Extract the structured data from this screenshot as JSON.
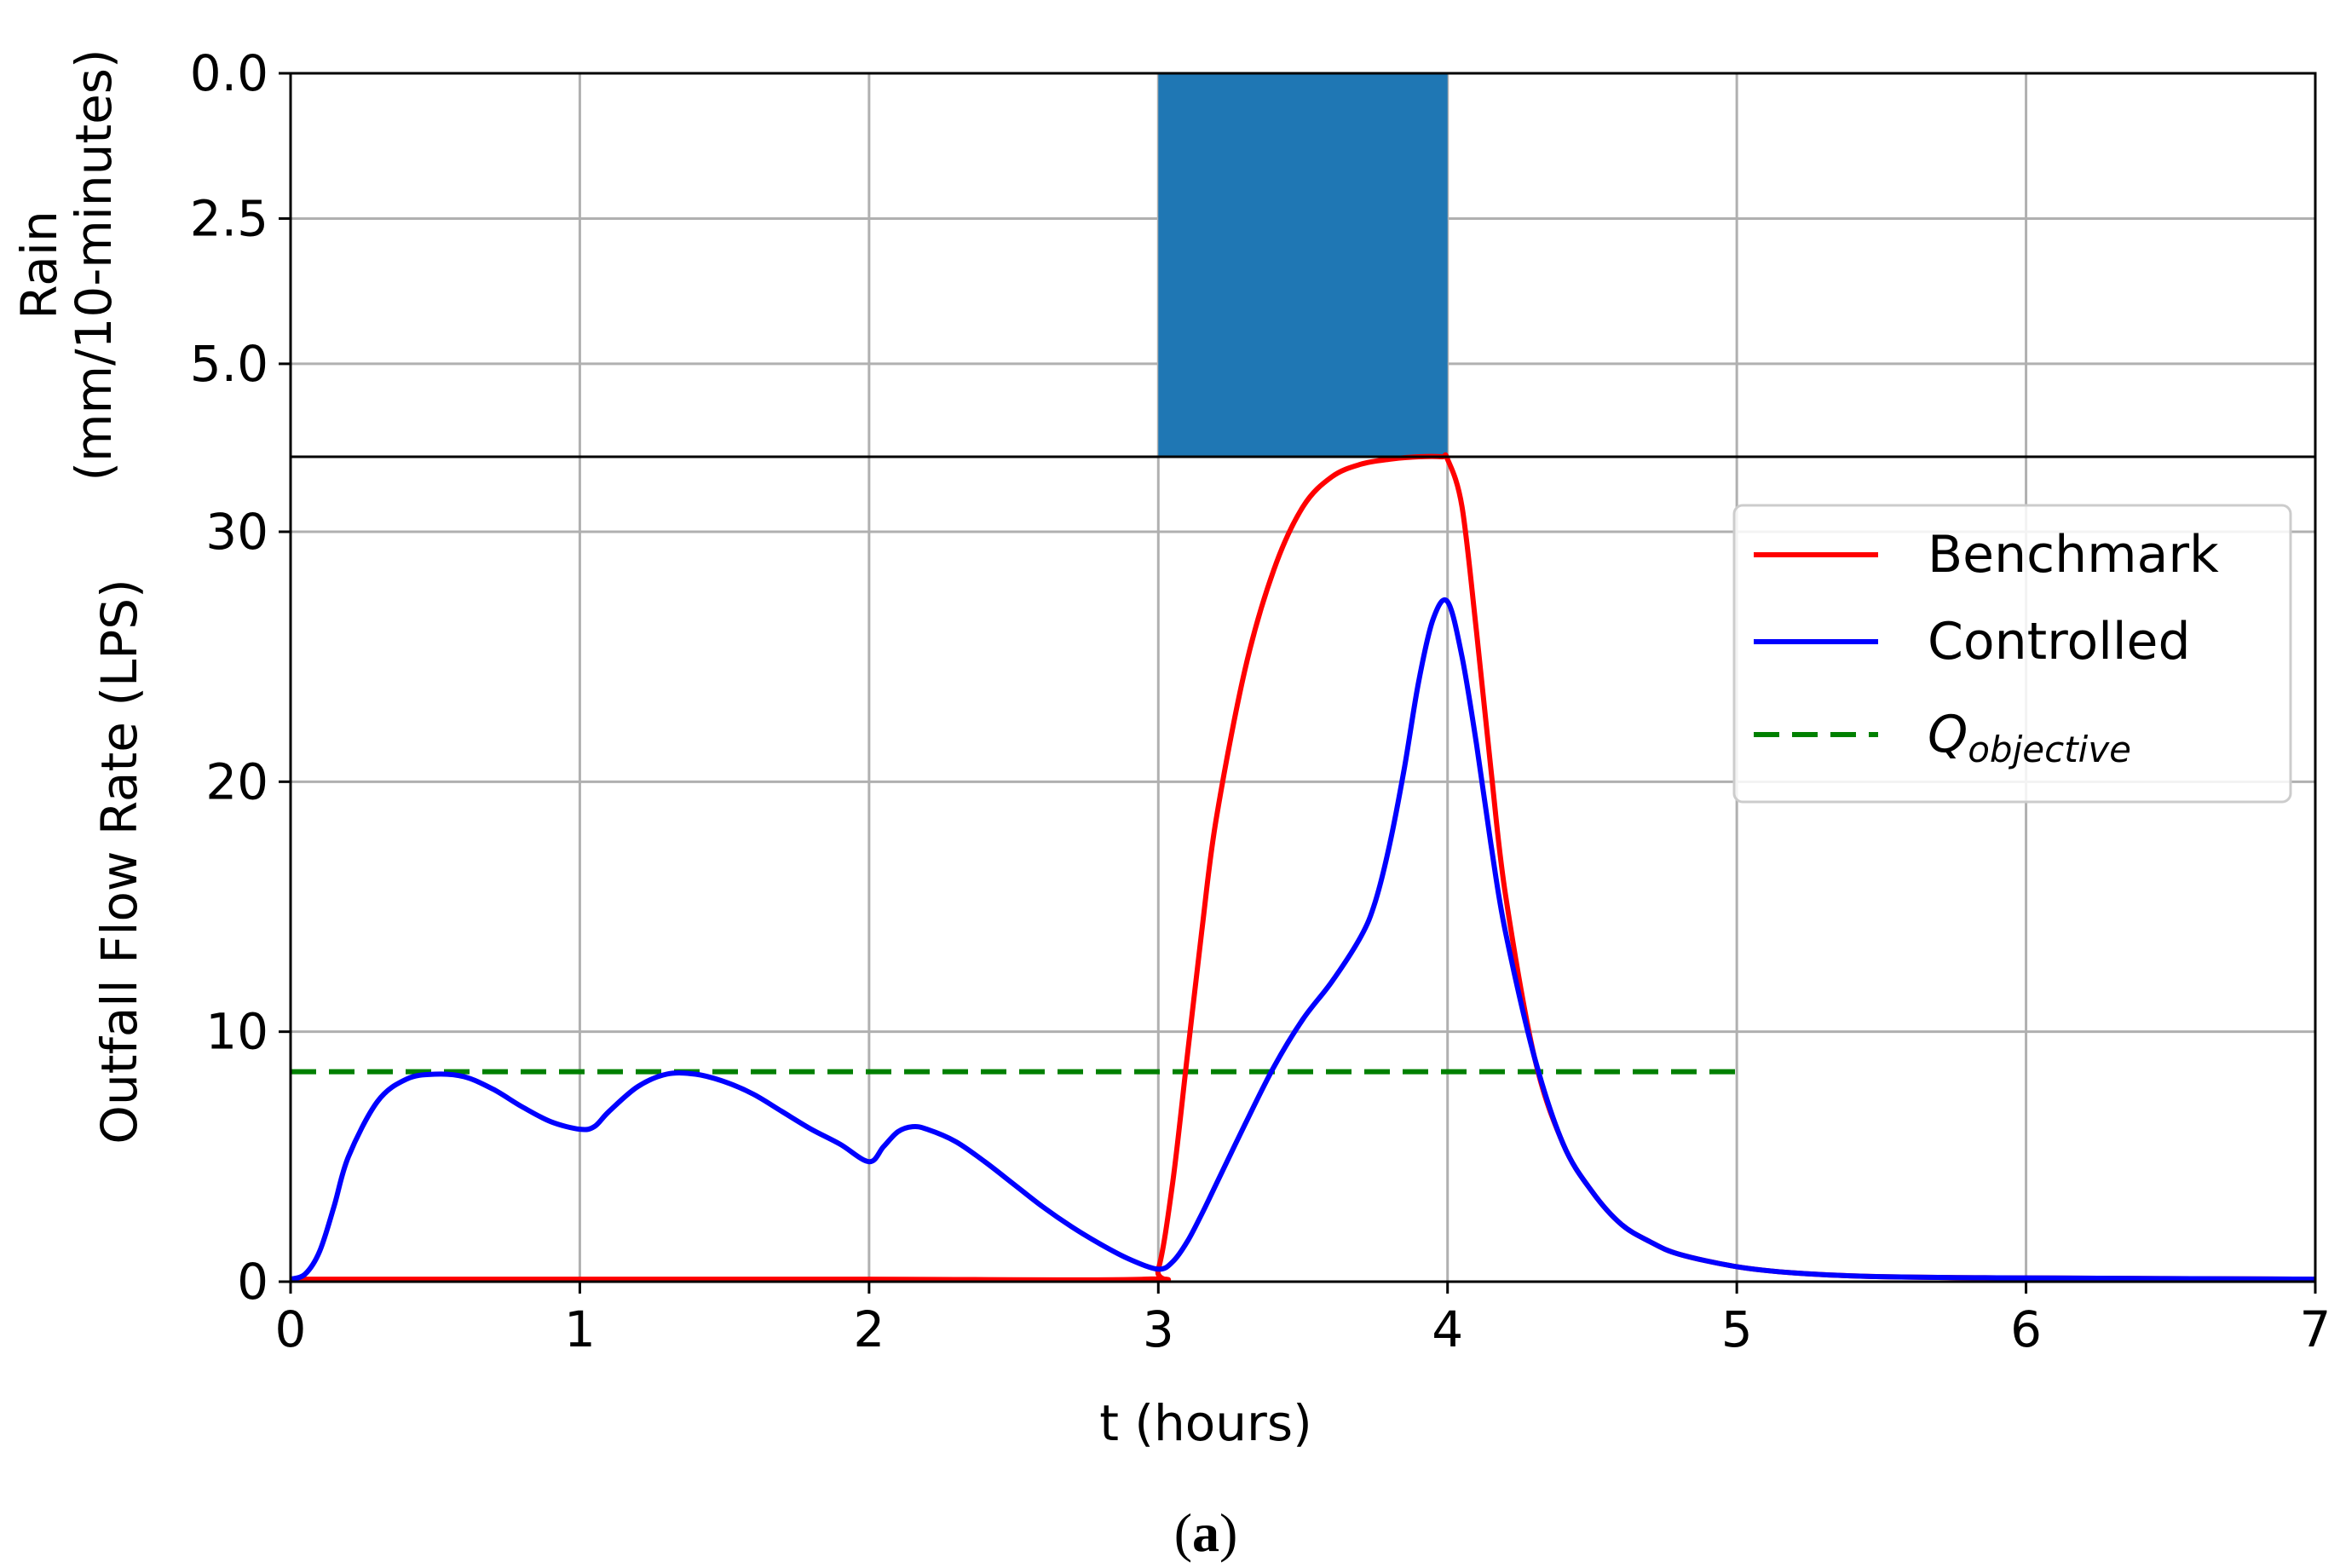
{
  "caption": {
    "open": "(",
    "letter": "a",
    "close": ")"
  },
  "chart_data": [
    {
      "type": "bar",
      "title": "",
      "ylabel_lines": [
        "Rain",
        "(mm/10-minutes)"
      ],
      "y_inverted": true,
      "ylim": [
        0,
        6.6
      ],
      "yticks": [
        "0.0",
        "2.5",
        "5.0"
      ],
      "ytick_values": [
        0,
        2.5,
        5.0
      ],
      "xlim": [
        0,
        7
      ],
      "grid": true,
      "bar_color": "#1f77b4",
      "bars": [
        {
          "x_start": 3,
          "x_end": 4,
          "value": 6.6
        }
      ]
    },
    {
      "type": "line",
      "title": "",
      "xlabel": "t (hours)",
      "ylabel": "Outfall Flow Rate (LPS)",
      "xlim": [
        0,
        7
      ],
      "ylim": [
        0,
        33
      ],
      "xticks": [
        "0",
        "1",
        "2",
        "3",
        "4",
        "5",
        "6",
        "7"
      ],
      "xtick_values": [
        0,
        1,
        2,
        3,
        4,
        5,
        6,
        7
      ],
      "yticks": [
        "0",
        "10",
        "20",
        "30"
      ],
      "ytick_values": [
        0,
        10,
        20,
        30
      ],
      "grid": true,
      "legend_position": "center-right",
      "series": [
        {
          "name": "Benchmark",
          "color": "#ff0000",
          "style": "solid",
          "x": [
            0,
            1,
            2,
            2.95,
            3.0,
            3.05,
            3.1,
            3.15,
            3.2,
            3.3,
            3.4,
            3.5,
            3.6,
            3.7,
            3.8,
            3.9,
            3.98,
            4.0,
            4.05,
            4.1,
            4.15,
            4.2,
            4.3,
            4.4,
            4.5,
            4.6,
            4.7,
            4.8,
            5.0,
            5.2,
            5.5,
            6.0,
            7.0
          ],
          "y": [
            0.1,
            0.1,
            0.1,
            0.1,
            0.5,
            4.0,
            9.0,
            14.0,
            18.5,
            24.5,
            28.5,
            31.0,
            32.2,
            32.7,
            32.9,
            33.0,
            33.0,
            32.9,
            31.0,
            26.0,
            20.5,
            15.5,
            9.0,
            5.5,
            3.6,
            2.3,
            1.6,
            1.1,
            0.6,
            0.35,
            0.2,
            0.15,
            0.1
          ]
        },
        {
          "name": "Controlled",
          "color": "#0000ff",
          "style": "solid",
          "x": [
            0,
            0.05,
            0.1,
            0.15,
            0.2,
            0.3,
            0.4,
            0.5,
            0.6,
            0.7,
            0.8,
            0.9,
            1.0,
            1.05,
            1.1,
            1.2,
            1.3,
            1.4,
            1.5,
            1.6,
            1.7,
            1.8,
            1.9,
            2.0,
            2.05,
            2.1,
            2.15,
            2.2,
            2.3,
            2.4,
            2.5,
            2.6,
            2.7,
            2.8,
            2.9,
            3.0,
            3.05,
            3.1,
            3.15,
            3.2,
            3.3,
            3.4,
            3.5,
            3.6,
            3.7,
            3.75,
            3.8,
            3.85,
            3.9,
            3.95,
            4.0,
            4.05,
            4.1,
            4.15,
            4.2,
            4.3,
            4.4,
            4.5,
            4.6,
            4.7,
            4.8,
            5.0,
            5.2,
            5.5,
            6.0,
            7.0
          ],
          "y": [
            0.1,
            0.3,
            1.2,
            3.0,
            5.0,
            7.2,
            8.1,
            8.3,
            8.2,
            7.7,
            7.0,
            6.4,
            6.1,
            6.2,
            6.8,
            7.8,
            8.3,
            8.3,
            8.0,
            7.5,
            6.8,
            6.1,
            5.5,
            4.8,
            5.4,
            6.0,
            6.2,
            6.1,
            5.6,
            4.8,
            3.9,
            3.0,
            2.2,
            1.5,
            0.9,
            0.5,
            0.8,
            1.6,
            2.7,
            3.9,
            6.3,
            8.6,
            10.5,
            12.0,
            13.8,
            15.2,
            17.5,
            20.5,
            24.0,
            26.5,
            27.2,
            25.0,
            21.5,
            17.5,
            14.0,
            9.0,
            5.5,
            3.6,
            2.3,
            1.6,
            1.1,
            0.6,
            0.35,
            0.2,
            0.15,
            0.1
          ]
        },
        {
          "name": "Q",
          "name_subscript": "objective",
          "color": "#008000",
          "style": "dashed",
          "x": [
            0,
            5
          ],
          "y": [
            8.4,
            8.4
          ]
        }
      ]
    }
  ]
}
